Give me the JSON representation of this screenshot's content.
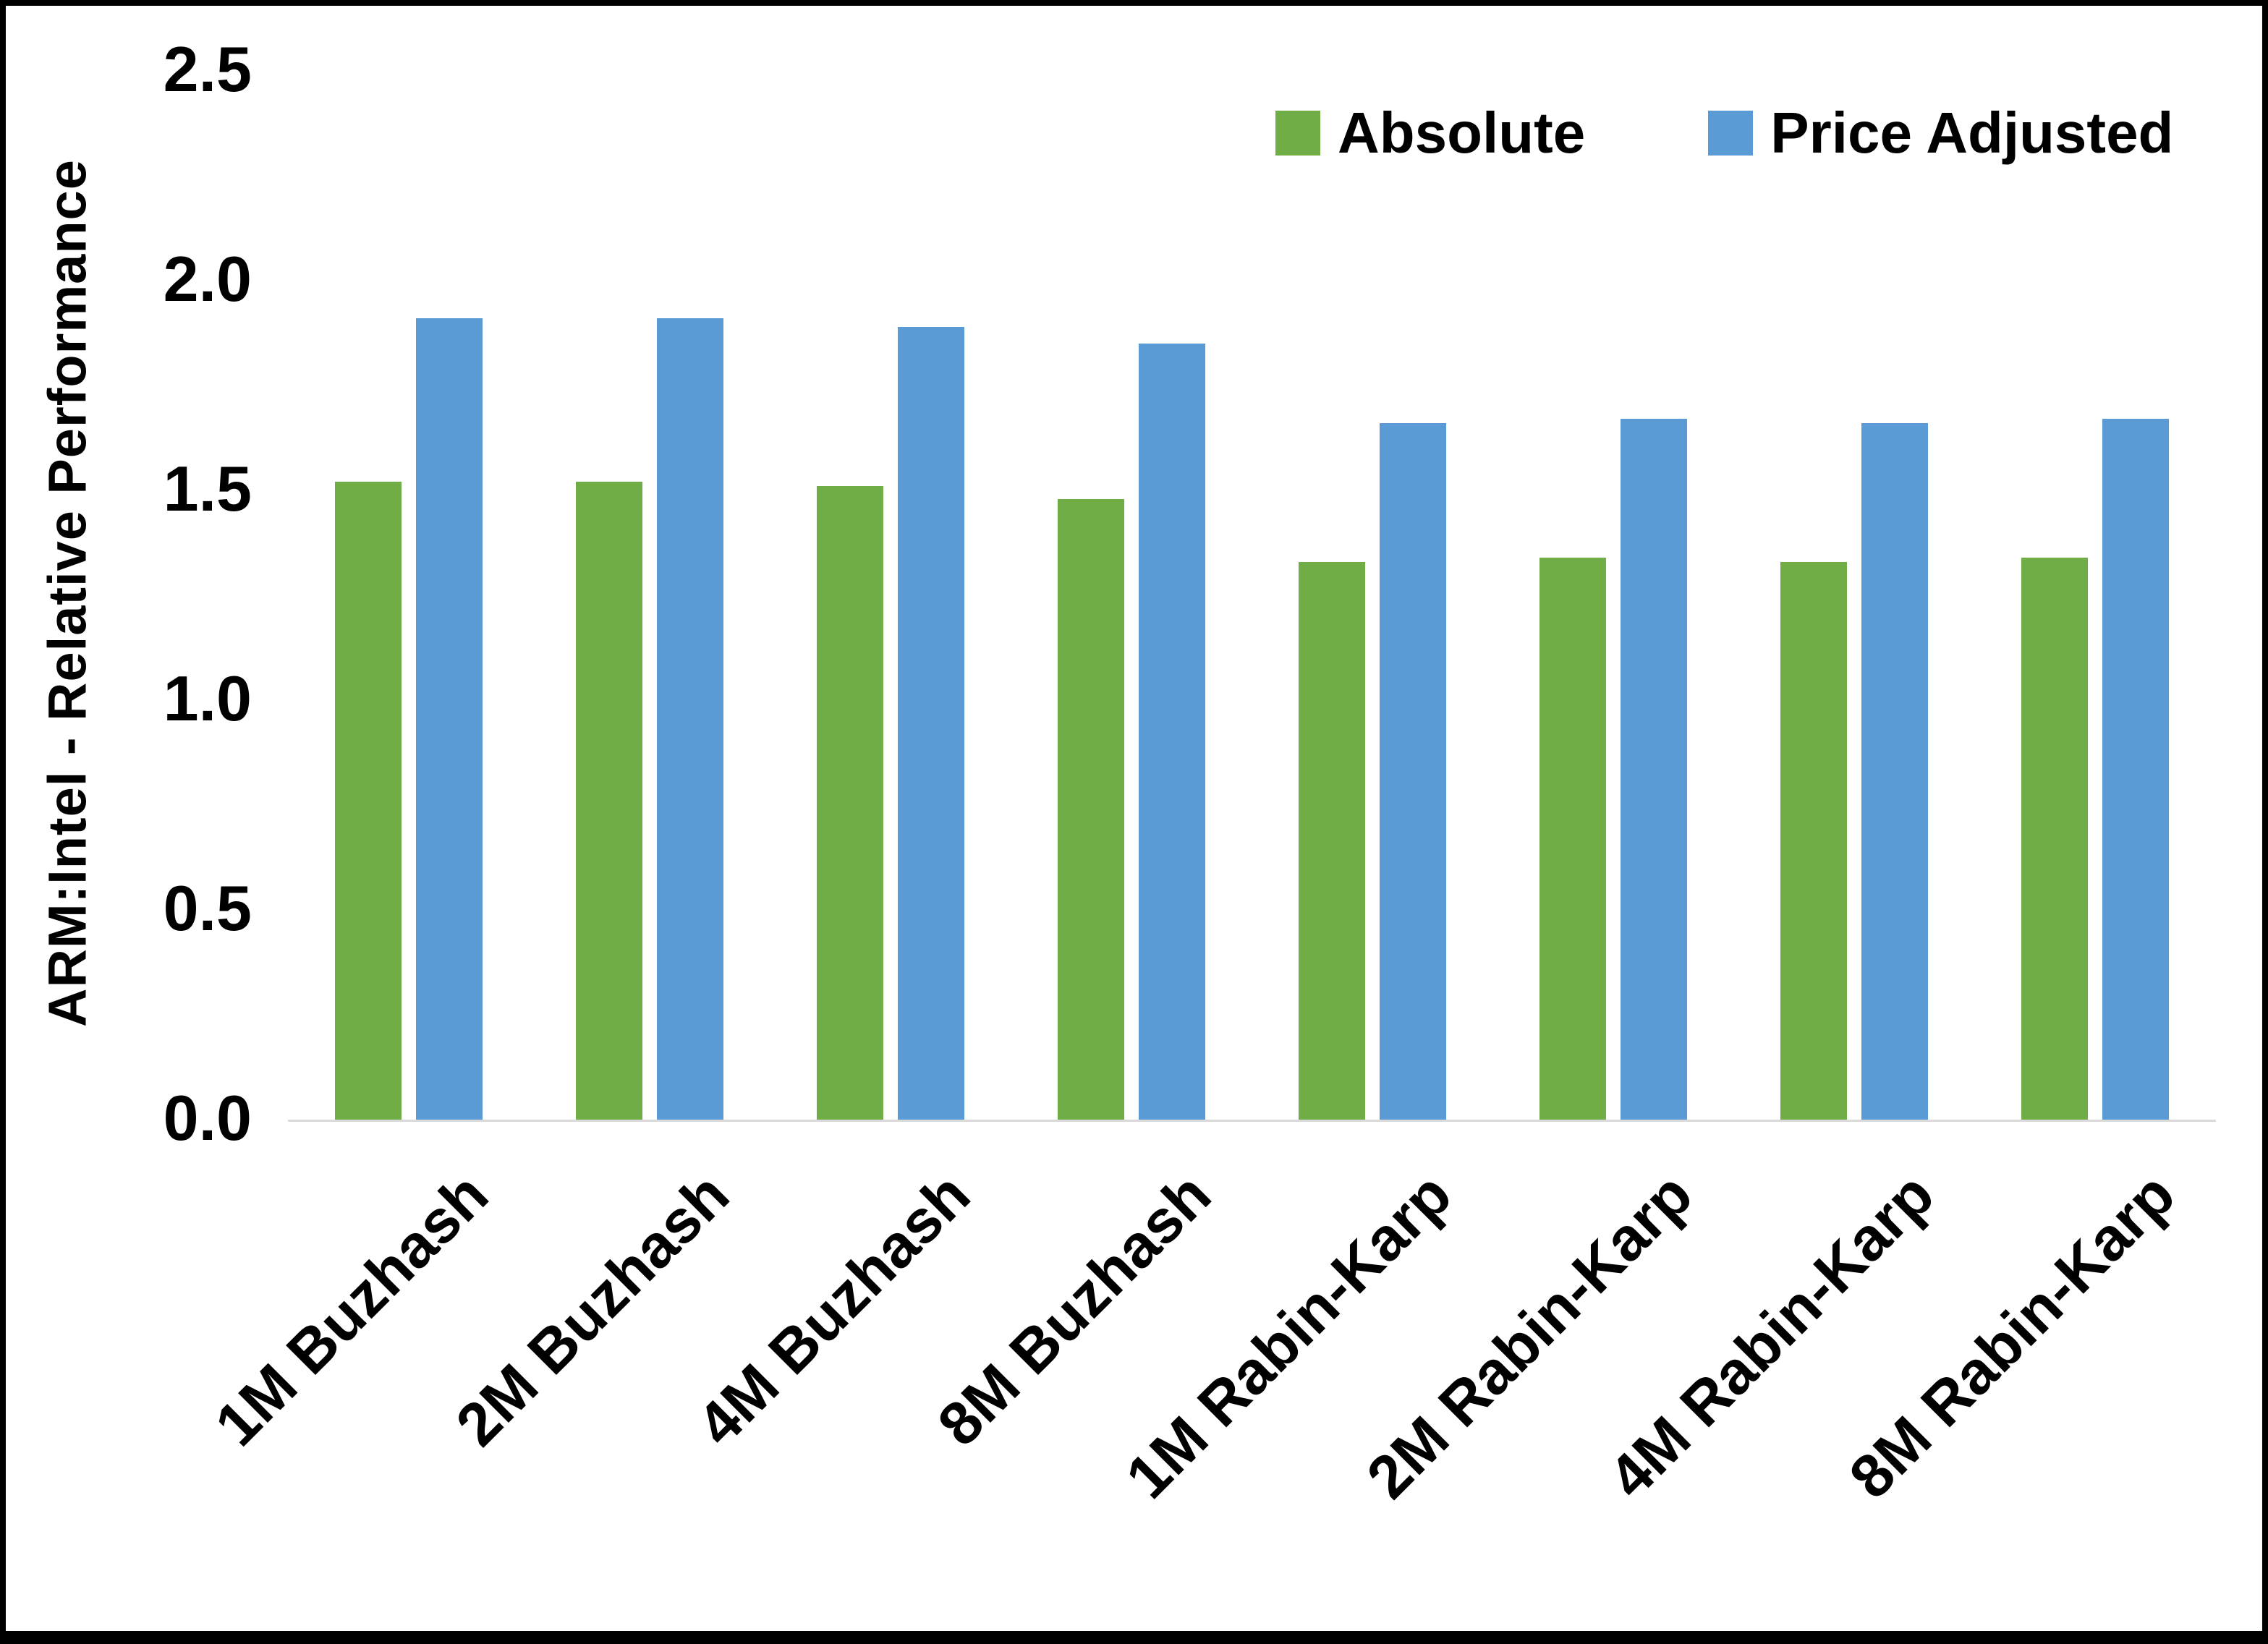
{
  "chart_data": {
    "type": "bar",
    "title": "",
    "xlabel": "",
    "ylabel": "ARM:Intel - Relative Performance",
    "ylim": [
      0.0,
      2.5
    ],
    "yticks": [
      "0.0",
      "0.5",
      "1.0",
      "1.5",
      "2.0",
      "2.5"
    ],
    "grid": false,
    "legend_position": "top-right",
    "categories": [
      "1M Buzhash",
      "2M Buzhash",
      "4M Buzhash",
      "8M Buzhash",
      "1M Rabin-Karp",
      "2M Rabin-Karp",
      "4M Rabin-Karp",
      "8M Rabin-Karp"
    ],
    "series": [
      {
        "name": "Absolute",
        "color": "#70AD47",
        "values": [
          1.52,
          1.52,
          1.51,
          1.48,
          1.33,
          1.34,
          1.33,
          1.34
        ]
      },
      {
        "name": "Price Adjusted",
        "color": "#5B9BD5",
        "values": [
          1.91,
          1.91,
          1.89,
          1.85,
          1.66,
          1.67,
          1.66,
          1.67
        ]
      }
    ]
  },
  "colors": {
    "background": "#FFFFFF",
    "frame": "#000000",
    "axis_line": "#D9D9D9",
    "text": "#000000"
  }
}
